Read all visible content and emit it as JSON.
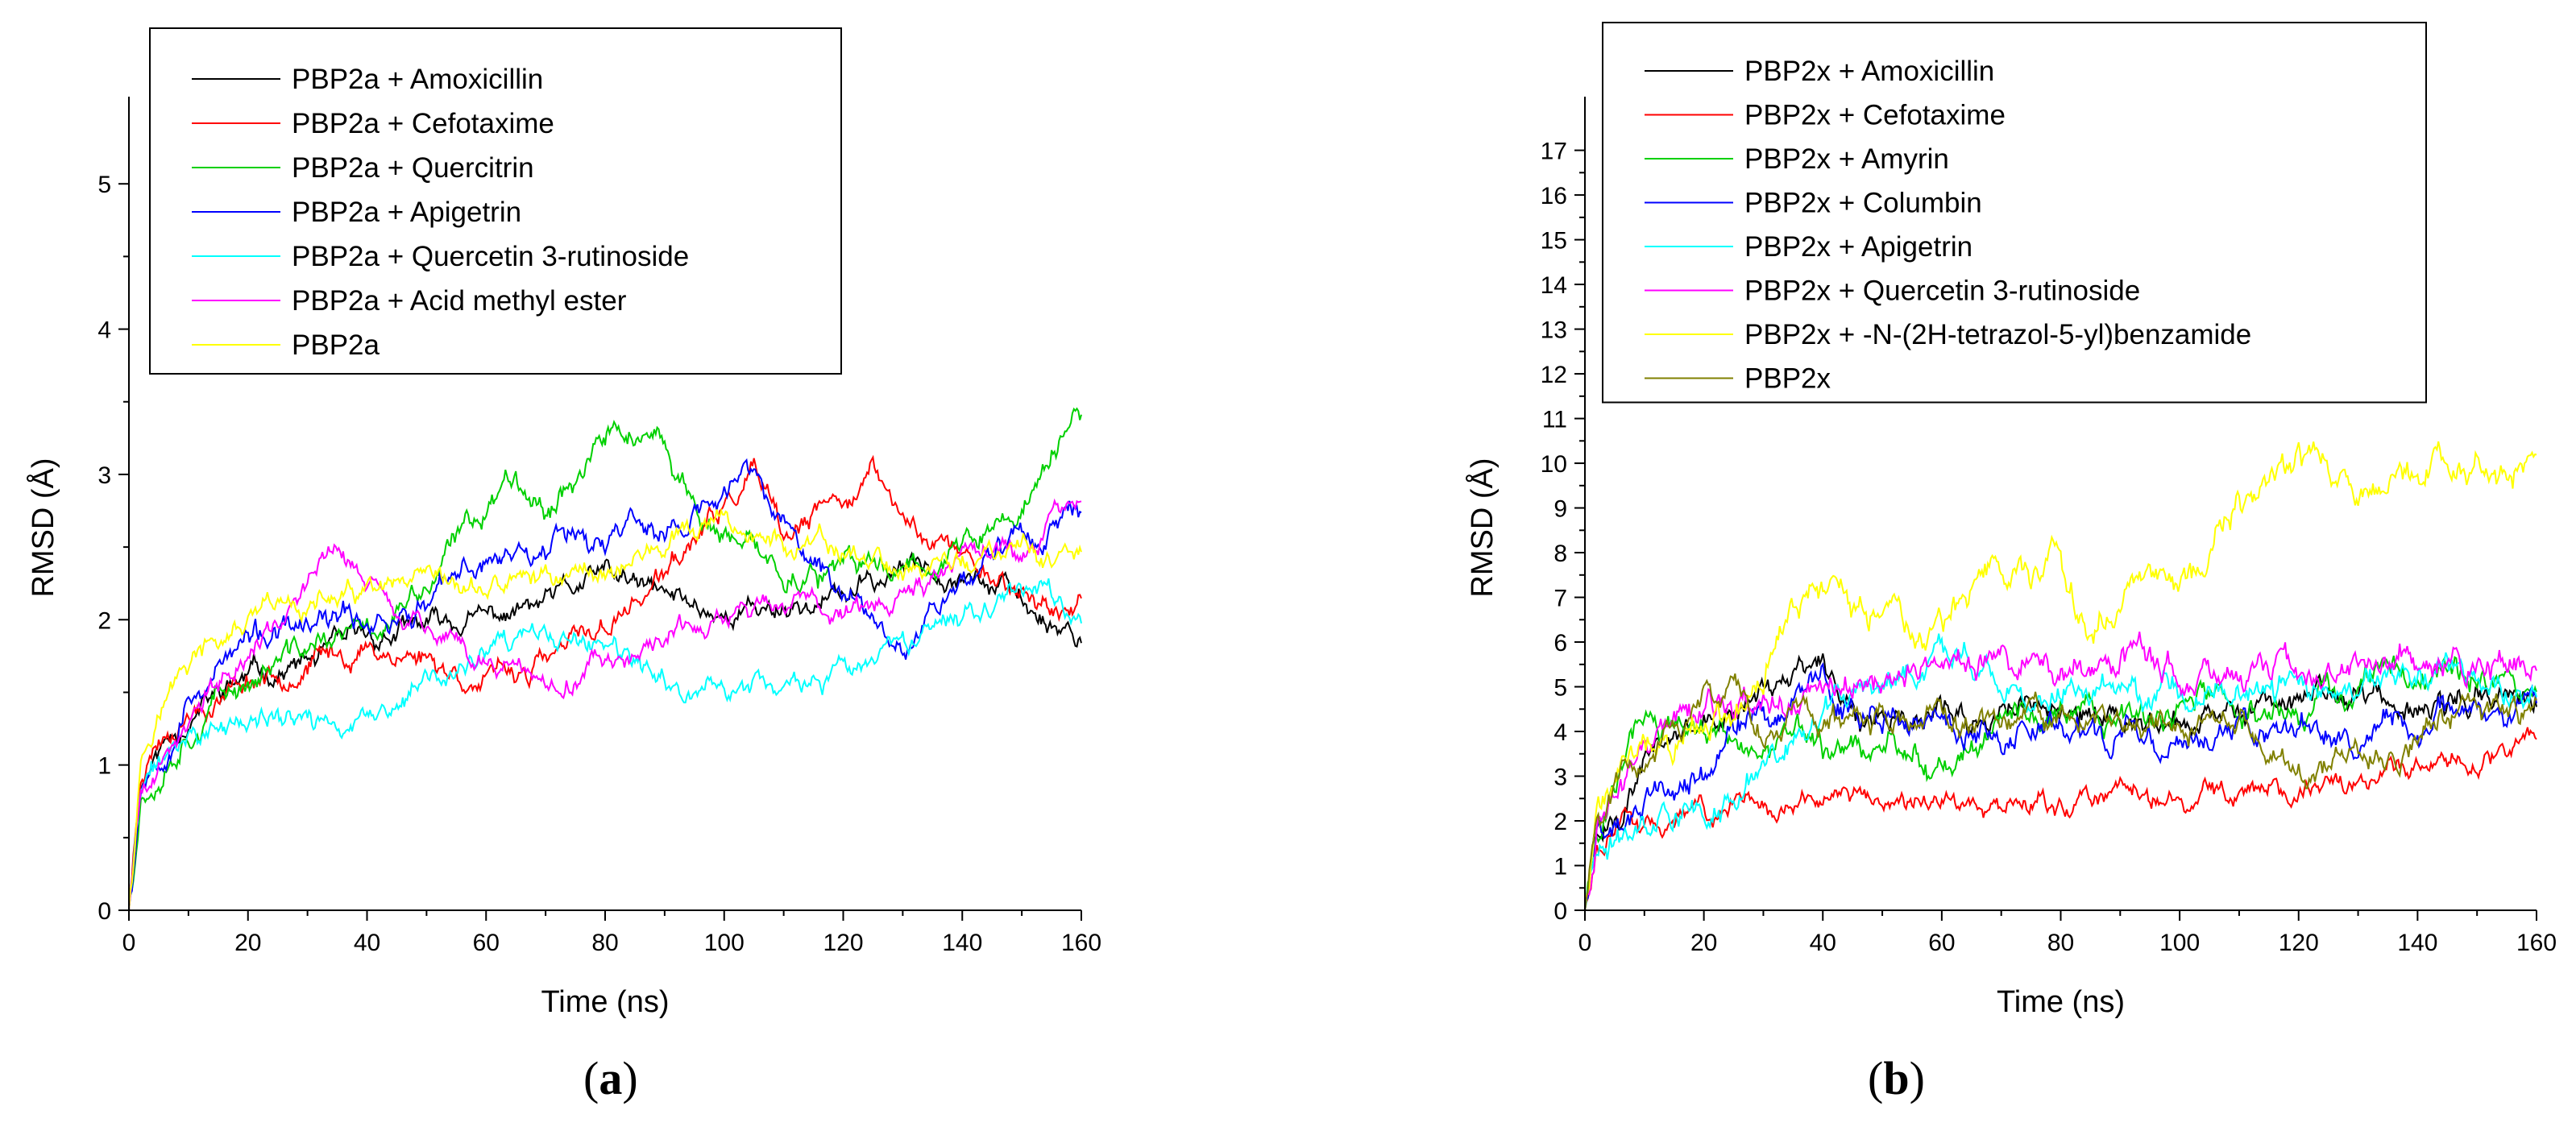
{
  "panel_labels": {
    "a": "a",
    "b": "b"
  },
  "chart_data": [
    {
      "type": "line",
      "xlabel": "Time (ns)",
      "ylabel": "RMSD (Å)",
      "xlim": [
        0,
        160
      ],
      "ylim": [
        0,
        5.6
      ],
      "xticks": [
        0,
        20,
        40,
        60,
        80,
        100,
        120,
        140,
        160
      ],
      "yticks": [
        0,
        1,
        2,
        3,
        4,
        5
      ],
      "grid": false,
      "legend_position": "top-left",
      "series": [
        {
          "name": "PBP2a + Amoxicillin",
          "color": "#000000",
          "seed": 11,
          "noise": 0.07,
          "x": [
            0,
            2,
            5,
            10,
            20,
            30,
            40,
            50,
            60,
            70,
            80,
            90,
            100,
            110,
            120,
            130,
            140,
            150,
            155,
            160
          ],
          "y": [
            0,
            0.9,
            1.1,
            1.35,
            1.6,
            1.7,
            1.85,
            1.95,
            2.0,
            2.1,
            2.3,
            2.15,
            2.05,
            2.1,
            2.15,
            2.35,
            2.4,
            2.1,
            2.0,
            1.9
          ]
        },
        {
          "name": "PBP2a + Cefotaxime",
          "color": "#ff0000",
          "seed": 23,
          "noise": 0.07,
          "x": [
            0,
            2,
            5,
            10,
            20,
            30,
            40,
            50,
            60,
            70,
            80,
            90,
            100,
            105,
            110,
            120,
            125,
            130,
            140,
            150,
            160
          ],
          "y": [
            0,
            1.0,
            1.2,
            1.4,
            1.6,
            1.7,
            1.8,
            1.75,
            1.55,
            1.7,
            1.95,
            2.3,
            2.75,
            3.0,
            2.5,
            2.85,
            3.0,
            2.7,
            2.45,
            2.2,
            2.0
          ]
        },
        {
          "name": "PBP2a + Quercitrin",
          "color": "#00d000",
          "seed": 37,
          "noise": 0.08,
          "x": [
            0,
            2,
            5,
            10,
            20,
            30,
            40,
            50,
            55,
            60,
            65,
            70,
            80,
            85,
            90,
            100,
            110,
            120,
            130,
            140,
            150,
            155,
            160
          ],
          "y": [
            0,
            0.8,
            1.0,
            1.3,
            1.6,
            1.8,
            1.9,
            2.2,
            2.5,
            2.8,
            3.05,
            2.8,
            3.25,
            3.3,
            3.1,
            2.5,
            2.35,
            2.3,
            2.4,
            2.5,
            2.7,
            3.15,
            3.4
          ]
        },
        {
          "name": "PBP2a + Apigetrin",
          "color": "#0000ff",
          "seed": 53,
          "noise": 0.08,
          "x": [
            0,
            2,
            5,
            10,
            20,
            30,
            40,
            50,
            60,
            70,
            75,
            80,
            85,
            90,
            100,
            105,
            110,
            120,
            130,
            140,
            150,
            160
          ],
          "y": [
            0,
            0.9,
            1.1,
            1.5,
            1.85,
            1.9,
            2.0,
            2.1,
            2.4,
            2.55,
            2.7,
            2.5,
            2.75,
            2.55,
            2.85,
            3.05,
            2.6,
            2.2,
            1.9,
            2.3,
            2.6,
            2.7
          ]
        },
        {
          "name": "PBP2a + Quercetin 3-rutinoside",
          "color": "#00ffff",
          "seed": 71,
          "noise": 0.07,
          "x": [
            0,
            2,
            5,
            10,
            20,
            30,
            40,
            50,
            60,
            70,
            80,
            90,
            100,
            110,
            120,
            130,
            140,
            150,
            160
          ],
          "y": [
            0,
            0.8,
            1.0,
            1.2,
            1.3,
            1.3,
            1.25,
            1.55,
            1.75,
            1.85,
            1.8,
            1.5,
            1.55,
            1.55,
            1.6,
            1.75,
            2.05,
            2.3,
            2.0
          ]
        },
        {
          "name": "PBP2a + Acid methyl ester",
          "color": "#ff00ff",
          "seed": 89,
          "noise": 0.07,
          "x": [
            0,
            2,
            5,
            10,
            20,
            30,
            35,
            40,
            50,
            60,
            70,
            80,
            90,
            100,
            110,
            120,
            130,
            140,
            150,
            155,
            160
          ],
          "y": [
            0,
            0.8,
            1.0,
            1.3,
            1.8,
            2.25,
            2.5,
            2.25,
            1.95,
            1.7,
            1.55,
            1.7,
            1.85,
            2.0,
            2.1,
            2.1,
            2.2,
            2.35,
            2.45,
            2.7,
            2.75
          ]
        },
        {
          "name": "PBP2a",
          "color": "#ffff00",
          "seed": 97,
          "noise": 0.07,
          "x": [
            0,
            2,
            5,
            10,
            20,
            30,
            40,
            50,
            60,
            70,
            80,
            90,
            100,
            110,
            120,
            130,
            140,
            150,
            160
          ],
          "y": [
            0,
            1.1,
            1.4,
            1.7,
            1.95,
            2.1,
            2.15,
            2.15,
            2.2,
            2.3,
            2.35,
            2.5,
            2.65,
            2.5,
            2.45,
            2.35,
            2.4,
            2.45,
            2.4
          ]
        }
      ]
    },
    {
      "type": "line",
      "xlabel": "Time (ns)",
      "ylabel": "RMSD (Å)",
      "xlim": [
        0,
        160
      ],
      "ylim": [
        0,
        18.2
      ],
      "xticks": [
        0,
        20,
        40,
        60,
        80,
        100,
        120,
        140,
        160
      ],
      "yticks": [
        0,
        1,
        2,
        3,
        4,
        5,
        6,
        7,
        8,
        9,
        10,
        11,
        12,
        13,
        14,
        15,
        16,
        17
      ],
      "grid": false,
      "legend_position": "top-left",
      "series": [
        {
          "name": "PBP2x + Amoxicillin",
          "color": "#000000",
          "seed": 101,
          "noise": 0.28,
          "x": [
            0,
            2,
            5,
            10,
            15,
            20,
            25,
            30,
            35,
            40,
            45,
            50,
            60,
            70,
            80,
            90,
            100,
            110,
            120,
            130,
            140,
            150,
            160
          ],
          "y": [
            0,
            1.6,
            2.2,
            3.2,
            4.0,
            4.3,
            4.5,
            4.9,
            5.3,
            5.7,
            4.5,
            4.3,
            4.6,
            4.4,
            4.5,
            4.3,
            4.2,
            4.5,
            4.7,
            5.0,
            4.6,
            4.8,
            4.7
          ]
        },
        {
          "name": "PBP2x + Cefotaxime",
          "color": "#ff0000",
          "seed": 113,
          "noise": 0.22,
          "x": [
            0,
            2,
            5,
            10,
            20,
            30,
            40,
            50,
            60,
            70,
            80,
            90,
            100,
            110,
            120,
            130,
            140,
            150,
            160
          ],
          "y": [
            0,
            1.4,
            1.7,
            2.0,
            2.3,
            2.4,
            2.5,
            2.4,
            2.5,
            2.35,
            2.4,
            2.5,
            2.4,
            2.6,
            2.7,
            2.9,
            3.1,
            3.4,
            3.6
          ]
        },
        {
          "name": "PBP2x + Amyrin",
          "color": "#00d000",
          "seed": 127,
          "noise": 0.3,
          "x": [
            0,
            2,
            5,
            10,
            15,
            20,
            30,
            40,
            50,
            55,
            60,
            70,
            80,
            90,
            100,
            110,
            120,
            130,
            140,
            150,
            160
          ],
          "y": [
            0,
            2.0,
            3.0,
            4.6,
            4.2,
            4.0,
            3.8,
            3.6,
            3.5,
            3.2,
            3.2,
            4.2,
            4.6,
            4.3,
            4.4,
            4.5,
            4.6,
            4.9,
            5.3,
            5.1,
            5.0
          ]
        },
        {
          "name": "PBP2x + Columbin",
          "color": "#0000ff",
          "seed": 131,
          "noise": 0.3,
          "x": [
            0,
            2,
            5,
            10,
            20,
            30,
            40,
            50,
            60,
            70,
            80,
            90,
            100,
            110,
            120,
            130,
            140,
            150,
            160
          ],
          "y": [
            0,
            1.8,
            2.0,
            2.3,
            3.0,
            4.6,
            4.9,
            4.3,
            4.2,
            4.1,
            4.0,
            4.0,
            3.9,
            4.1,
            4.0,
            3.9,
            4.3,
            4.5,
            4.2
          ]
        },
        {
          "name": "PBP2x + Apigetrin",
          "color": "#00ffff",
          "seed": 149,
          "noise": 0.3,
          "x": [
            0,
            2,
            5,
            10,
            20,
            25,
            30,
            40,
            50,
            60,
            70,
            80,
            90,
            100,
            110,
            120,
            130,
            140,
            150,
            160
          ],
          "y": [
            0,
            1.4,
            1.6,
            2.0,
            2.4,
            2.2,
            3.5,
            4.6,
            5.0,
            5.3,
            4.9,
            4.7,
            4.9,
            5.0,
            4.9,
            5.0,
            5.1,
            5.0,
            5.2,
            5.1
          ]
        },
        {
          "name": "PBP2x + Quercetin 3-rutinoside",
          "color": "#ff00ff",
          "seed": 157,
          "noise": 0.3,
          "x": [
            0,
            2,
            5,
            10,
            20,
            30,
            40,
            50,
            60,
            70,
            80,
            90,
            100,
            110,
            120,
            130,
            140,
            150,
            160
          ],
          "y": [
            0,
            2.0,
            3.0,
            3.8,
            4.5,
            4.8,
            5.1,
            5.3,
            5.4,
            5.5,
            5.6,
            5.6,
            5.5,
            5.5,
            5.4,
            5.5,
            5.6,
            5.6,
            5.5
          ]
        },
        {
          "name": "PBP2x + -N-(2H-tetrazol-5-yl)benzamide",
          "color": "#ffff00",
          "seed": 163,
          "noise": 0.32,
          "x": [
            0,
            2,
            5,
            10,
            15,
            20,
            25,
            30,
            35,
            40,
            45,
            50,
            55,
            60,
            70,
            80,
            85,
            90,
            95,
            100,
            105,
            110,
            115,
            120,
            130,
            140,
            150,
            155,
            160
          ],
          "y": [
            0,
            2.5,
            3.2,
            3.6,
            4.0,
            4.5,
            4.6,
            5.0,
            7.1,
            7.4,
            6.7,
            6.3,
            6.1,
            6.3,
            7.6,
            7.4,
            6.2,
            6.6,
            7.8,
            7.2,
            8.1,
            8.9,
            9.6,
            9.8,
            9.7,
            9.9,
            10.0,
            9.6,
            10.3
          ]
        },
        {
          "name": "PBP2x",
          "color": "#808000",
          "seed": 173,
          "noise": 0.28,
          "x": [
            0,
            2,
            5,
            10,
            15,
            20,
            25,
            30,
            40,
            50,
            60,
            70,
            80,
            90,
            100,
            110,
            115,
            120,
            130,
            140,
            150,
            160
          ],
          "y": [
            0,
            2.0,
            2.8,
            3.6,
            4.2,
            4.5,
            5.0,
            4.3,
            4.0,
            4.1,
            4.4,
            4.3,
            4.2,
            4.1,
            4.3,
            4.2,
            3.4,
            3.3,
            3.5,
            3.8,
            4.3,
            4.5
          ]
        }
      ]
    }
  ]
}
